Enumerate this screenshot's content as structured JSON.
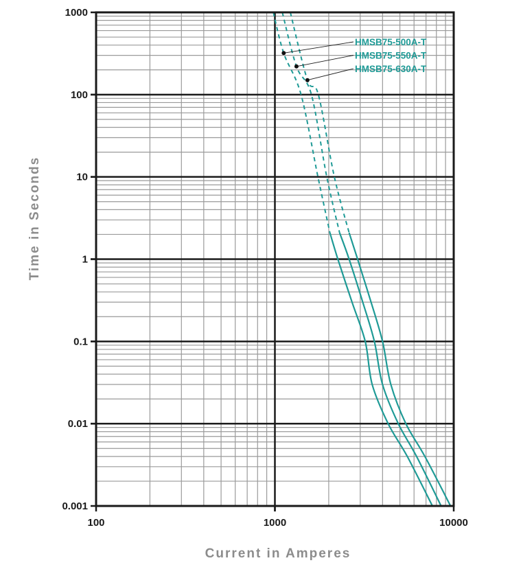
{
  "chart_data": {
    "type": "line",
    "title": "",
    "xlabel": "Current in Amperes",
    "ylabel": "Time in Seconds",
    "xscale": "log",
    "yscale": "log",
    "xlim": [
      100,
      10000
    ],
    "ylim": [
      0.001,
      1000
    ],
    "x_ticks": [
      "100",
      "1000",
      "10000"
    ],
    "y_ticks": [
      "1000",
      "100",
      "10",
      "1",
      "0.1",
      "0.01",
      "0.001"
    ],
    "grid": true,
    "line_color": "#1e9a96",
    "legend_position": "upper-right (callout labels with leader lines)",
    "series": [
      {
        "name": "HMSB75-500A-T",
        "dashed_until_time_s": 2.1,
        "points": [
          [
            980,
            1000
          ],
          [
            1120,
            320
          ],
          [
            1400,
            100
          ],
          [
            1740,
            10
          ],
          [
            2030,
            2.1
          ],
          [
            2250,
            1
          ],
          [
            2700,
            0.3
          ],
          [
            3200,
            0.1
          ],
          [
            3500,
            0.03
          ],
          [
            4300,
            0.01
          ],
          [
            5500,
            0.004
          ],
          [
            7600,
            0.001
          ]
        ]
      },
      {
        "name": "HMSB75-550A-T",
        "dashed_until_time_s": 2.1,
        "points": [
          [
            1100,
            1000
          ],
          [
            1320,
            220
          ],
          [
            1600,
            100
          ],
          [
            1950,
            10
          ],
          [
            2300,
            2.1
          ],
          [
            2600,
            1
          ],
          [
            3100,
            0.3
          ],
          [
            3600,
            0.1
          ],
          [
            4000,
            0.03
          ],
          [
            4900,
            0.01
          ],
          [
            6200,
            0.004
          ],
          [
            8500,
            0.001
          ]
        ]
      },
      {
        "name": "HMSB75-630A-T",
        "dashed_until_time_s": 2.1,
        "points": [
          [
            1220,
            1000
          ],
          [
            1520,
            150
          ],
          [
            1750,
            100
          ],
          [
            2150,
            10
          ],
          [
            2600,
            2.1
          ],
          [
            2900,
            1
          ],
          [
            3450,
            0.3
          ],
          [
            4000,
            0.1
          ],
          [
            4450,
            0.03
          ],
          [
            5400,
            0.01
          ],
          [
            6900,
            0.004
          ],
          [
            9600,
            0.001
          ]
        ]
      }
    ],
    "annotations": [
      {
        "text": "HMSB75-500A-T",
        "marker_at": [
          1120,
          320
        ]
      },
      {
        "text": "HMSB75-550A-T",
        "marker_at": [
          1320,
          220
        ]
      },
      {
        "text": "HMSB75-630A-T",
        "marker_at": [
          1520,
          150
        ]
      }
    ]
  }
}
